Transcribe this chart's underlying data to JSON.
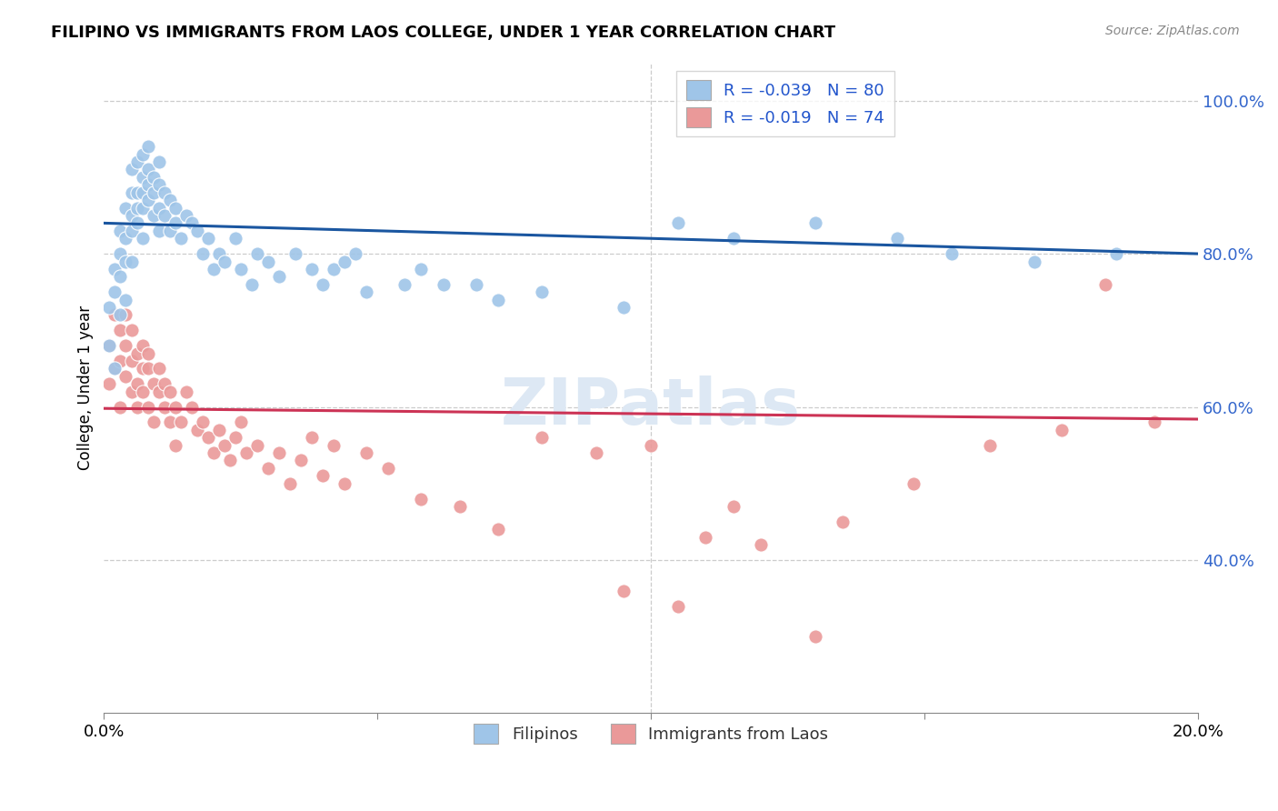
{
  "title": "FILIPINO VS IMMIGRANTS FROM LAOS COLLEGE, UNDER 1 YEAR CORRELATION CHART",
  "source": "Source: ZipAtlas.com",
  "ylabel": "College, Under 1 year",
  "xlim": [
    0.0,
    0.2
  ],
  "ylim": [
    0.2,
    1.05
  ],
  "yticks": [
    0.4,
    0.6,
    0.8,
    1.0
  ],
  "ytick_labels": [
    "40.0%",
    "60.0%",
    "80.0%",
    "100.0%"
  ],
  "blue_color": "#9fc5e8",
  "pink_color": "#ea9999",
  "blue_line_color": "#1a56a0",
  "pink_line_color": "#cc3355",
  "blue_line_x0": 0.0,
  "blue_line_y0": 0.84,
  "blue_line_x1": 0.2,
  "blue_line_y1": 0.8,
  "pink_line_x0": 0.0,
  "pink_line_y0": 0.598,
  "pink_line_x1": 0.2,
  "pink_line_y1": 0.584,
  "blue_scatter_x": [
    0.001,
    0.001,
    0.002,
    0.002,
    0.002,
    0.003,
    0.003,
    0.003,
    0.003,
    0.004,
    0.004,
    0.004,
    0.004,
    0.005,
    0.005,
    0.005,
    0.005,
    0.005,
    0.006,
    0.006,
    0.006,
    0.006,
    0.007,
    0.007,
    0.007,
    0.007,
    0.007,
    0.008,
    0.008,
    0.008,
    0.008,
    0.009,
    0.009,
    0.009,
    0.01,
    0.01,
    0.01,
    0.01,
    0.011,
    0.011,
    0.012,
    0.012,
    0.013,
    0.013,
    0.014,
    0.015,
    0.016,
    0.017,
    0.018,
    0.019,
    0.02,
    0.021,
    0.022,
    0.024,
    0.025,
    0.027,
    0.028,
    0.03,
    0.032,
    0.035,
    0.038,
    0.04,
    0.042,
    0.044,
    0.046,
    0.048,
    0.055,
    0.058,
    0.062,
    0.068,
    0.072,
    0.08,
    0.095,
    0.105,
    0.115,
    0.13,
    0.145,
    0.155,
    0.17,
    0.185
  ],
  "blue_scatter_y": [
    0.73,
    0.68,
    0.75,
    0.78,
    0.65,
    0.72,
    0.8,
    0.77,
    0.83,
    0.82,
    0.79,
    0.86,
    0.74,
    0.85,
    0.88,
    0.83,
    0.79,
    0.91,
    0.88,
    0.86,
    0.92,
    0.84,
    0.9,
    0.88,
    0.93,
    0.86,
    0.82,
    0.91,
    0.89,
    0.94,
    0.87,
    0.9,
    0.88,
    0.85,
    0.92,
    0.89,
    0.86,
    0.83,
    0.88,
    0.85,
    0.87,
    0.83,
    0.86,
    0.84,
    0.82,
    0.85,
    0.84,
    0.83,
    0.8,
    0.82,
    0.78,
    0.8,
    0.79,
    0.82,
    0.78,
    0.76,
    0.8,
    0.79,
    0.77,
    0.8,
    0.78,
    0.76,
    0.78,
    0.79,
    0.8,
    0.75,
    0.76,
    0.78,
    0.76,
    0.76,
    0.74,
    0.75,
    0.73,
    0.84,
    0.82,
    0.84,
    0.82,
    0.8,
    0.79,
    0.8
  ],
  "pink_scatter_x": [
    0.001,
    0.001,
    0.002,
    0.002,
    0.003,
    0.003,
    0.003,
    0.004,
    0.004,
    0.004,
    0.005,
    0.005,
    0.005,
    0.006,
    0.006,
    0.006,
    0.007,
    0.007,
    0.007,
    0.008,
    0.008,
    0.008,
    0.009,
    0.009,
    0.01,
    0.01,
    0.011,
    0.011,
    0.012,
    0.012,
    0.013,
    0.013,
    0.014,
    0.015,
    0.016,
    0.017,
    0.018,
    0.019,
    0.02,
    0.021,
    0.022,
    0.023,
    0.024,
    0.025,
    0.026,
    0.028,
    0.03,
    0.032,
    0.034,
    0.036,
    0.038,
    0.04,
    0.042,
    0.044,
    0.048,
    0.052,
    0.058,
    0.065,
    0.072,
    0.08,
    0.09,
    0.1,
    0.11,
    0.12,
    0.135,
    0.148,
    0.162,
    0.175,
    0.183,
    0.192,
    0.095,
    0.105,
    0.115,
    0.13
  ],
  "pink_scatter_y": [
    0.63,
    0.68,
    0.65,
    0.72,
    0.6,
    0.66,
    0.7,
    0.64,
    0.68,
    0.72,
    0.62,
    0.66,
    0.7,
    0.63,
    0.67,
    0.6,
    0.65,
    0.68,
    0.62,
    0.65,
    0.6,
    0.67,
    0.63,
    0.58,
    0.62,
    0.65,
    0.6,
    0.63,
    0.58,
    0.62,
    0.55,
    0.6,
    0.58,
    0.62,
    0.6,
    0.57,
    0.58,
    0.56,
    0.54,
    0.57,
    0.55,
    0.53,
    0.56,
    0.58,
    0.54,
    0.55,
    0.52,
    0.54,
    0.5,
    0.53,
    0.56,
    0.51,
    0.55,
    0.5,
    0.54,
    0.52,
    0.48,
    0.47,
    0.44,
    0.56,
    0.54,
    0.55,
    0.43,
    0.42,
    0.45,
    0.5,
    0.55,
    0.57,
    0.76,
    0.58,
    0.36,
    0.34,
    0.47,
    0.3
  ]
}
